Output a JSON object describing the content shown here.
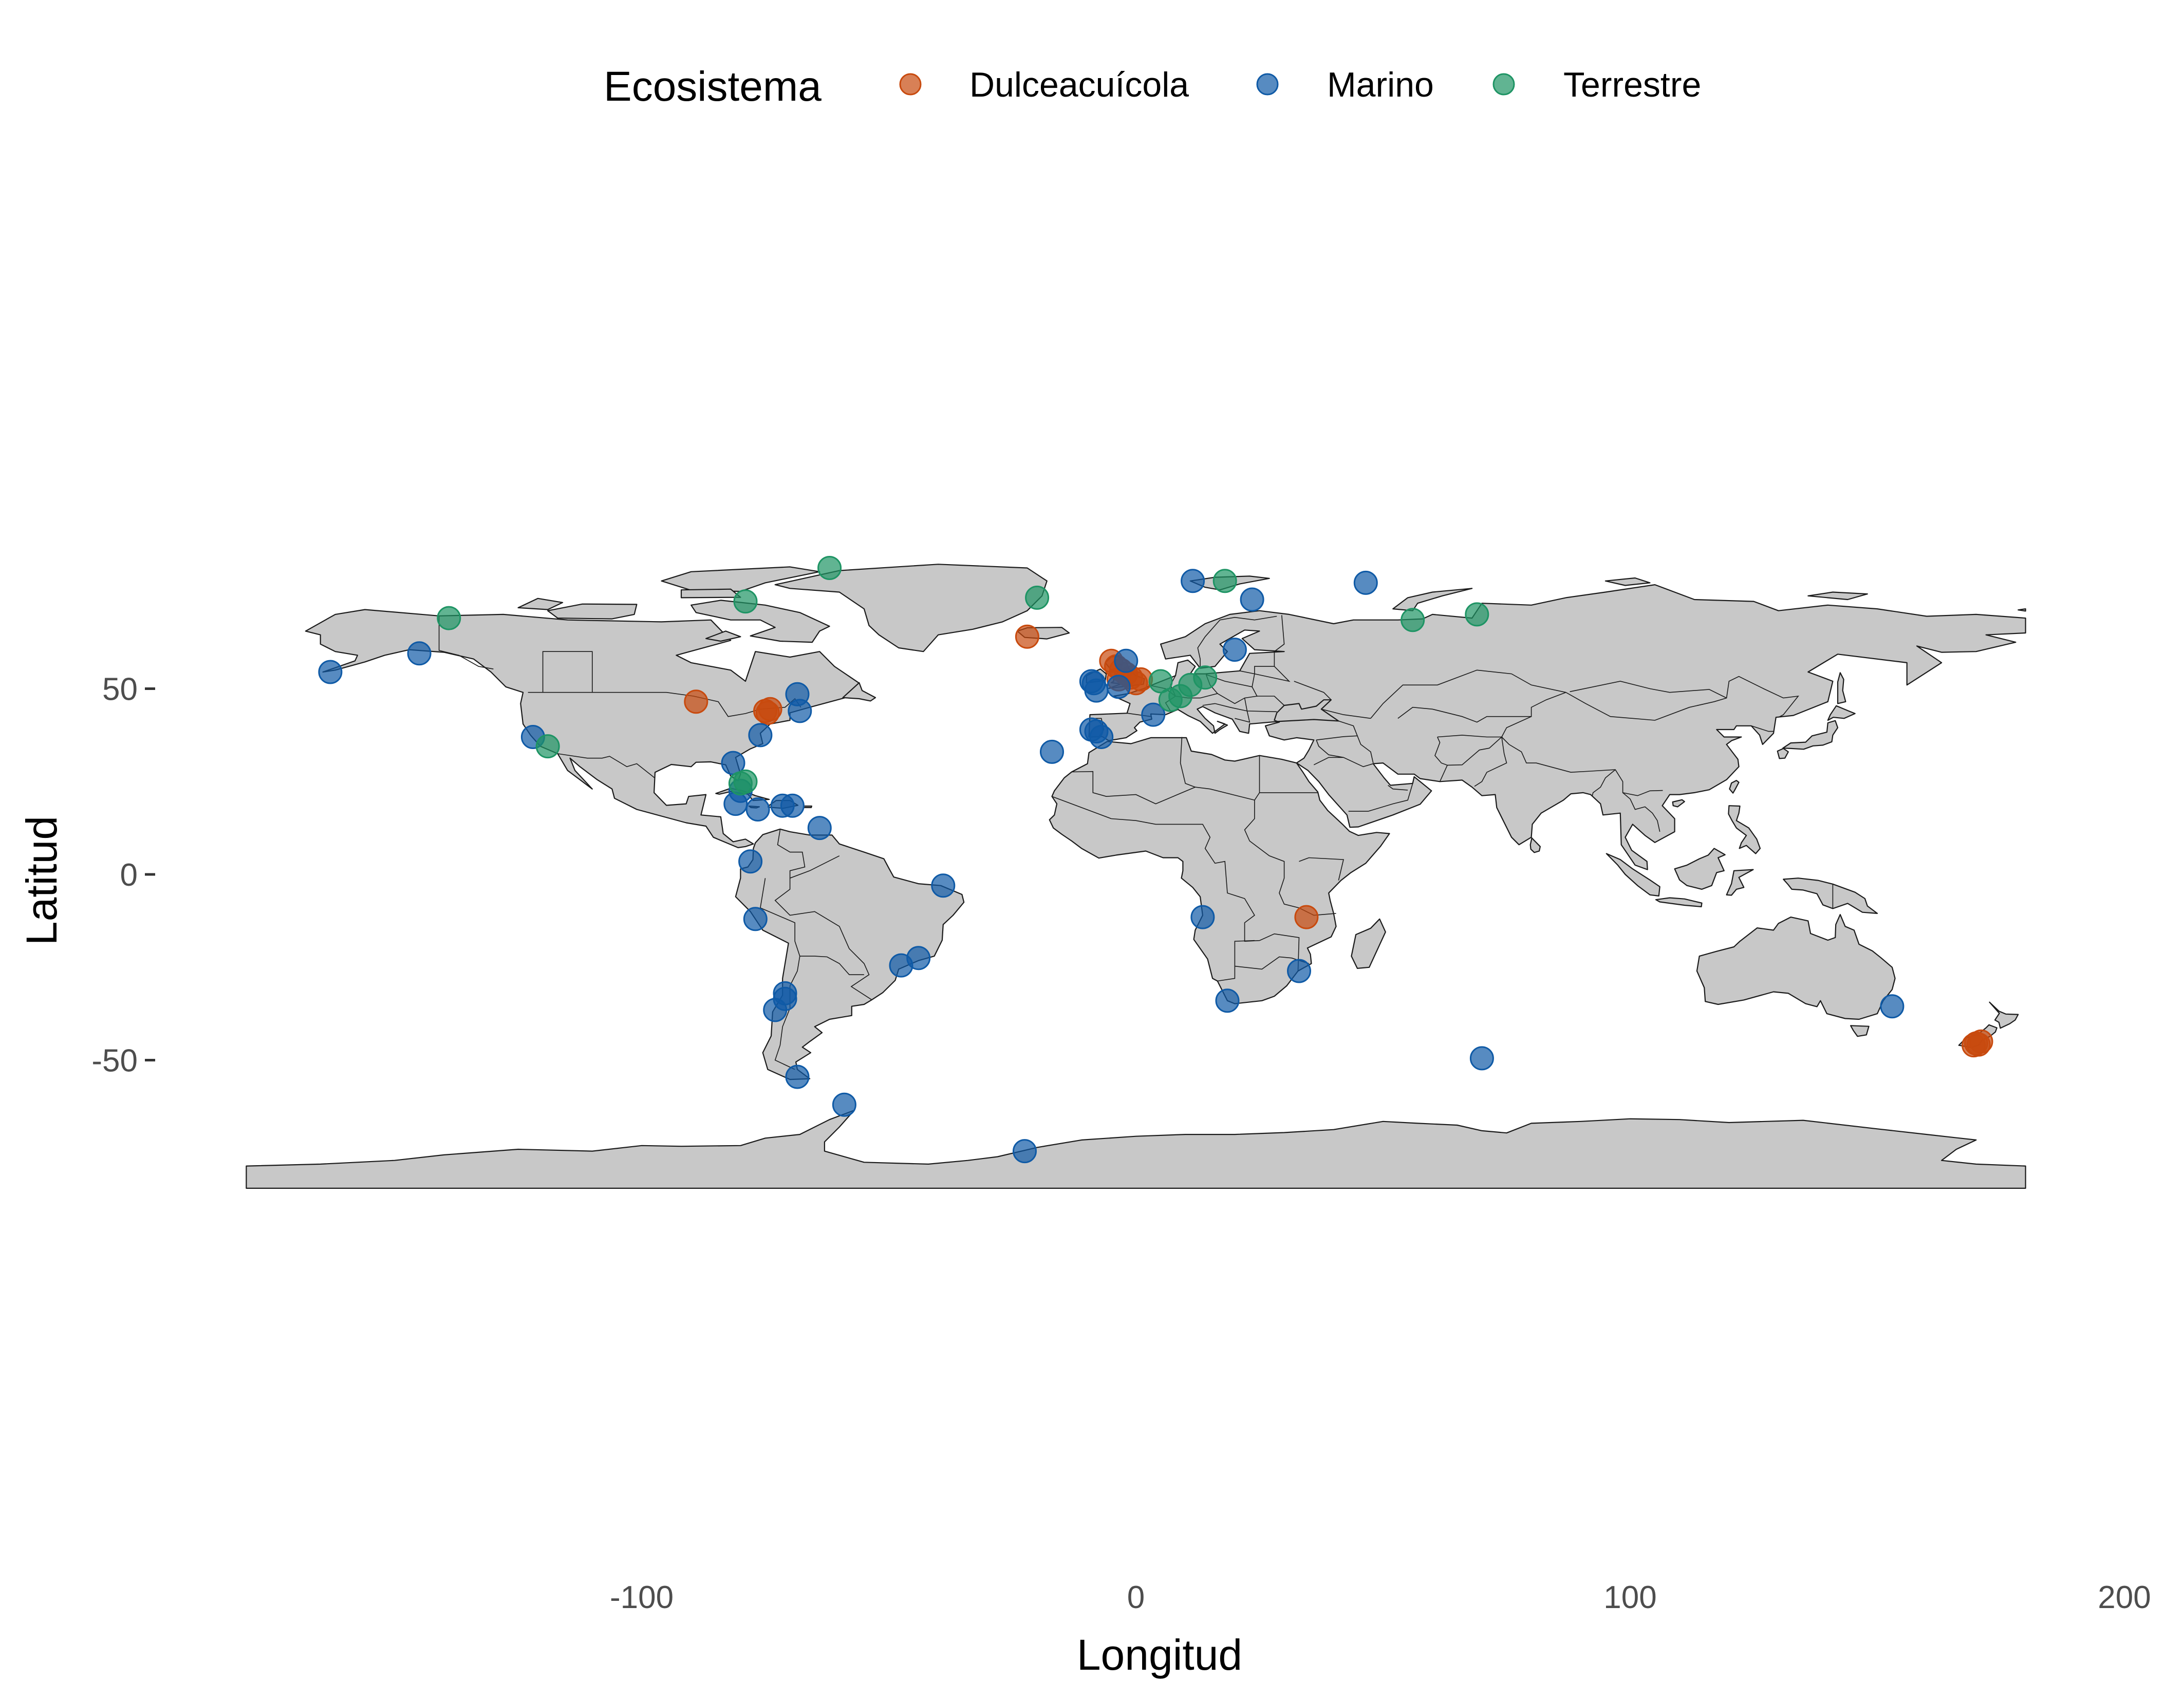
{
  "legend": {
    "title": "Ecosistema",
    "items": [
      {
        "label": "Dulceacuícola",
        "color": "#C84A0E"
      },
      {
        "label": "Marino",
        "color": "#0F5AA6"
      },
      {
        "label": "Terrestre",
        "color": "#1E9464"
      }
    ]
  },
  "axes": {
    "x_title": "Longitud",
    "y_title": "Latitud",
    "x_ticks": [
      {
        "value": -100,
        "label": "-100"
      },
      {
        "value": 0,
        "label": "0"
      },
      {
        "value": 100,
        "label": "100"
      },
      {
        "value": 200,
        "label": "200"
      }
    ],
    "y_ticks": [
      {
        "value": 50,
        "label": "50"
      },
      {
        "value": 0,
        "label": "0"
      },
      {
        "value": -50,
        "label": "-50"
      }
    ]
  },
  "chart_data": {
    "type": "scatter",
    "xlabel": "Longitud",
    "ylabel": "Latitud",
    "legend_title": "Ecosistema",
    "legend_position": "top",
    "grid": false,
    "xlim": [
      -180,
      200
    ],
    "ylim": [
      -85,
      84
    ],
    "series": [
      {
        "name": "Dulceacuícola",
        "points": [
          [
            -22,
            64
          ],
          [
            -89,
            46.5
          ],
          [
            -75,
            44
          ],
          [
            -74,
            44.5
          ],
          [
            -74.5,
            43.5
          ],
          [
            -5,
            57.5
          ],
          [
            -4,
            56
          ],
          [
            -3,
            55
          ],
          [
            -2,
            54
          ],
          [
            -3.5,
            52.5
          ],
          [
            -1,
            53
          ],
          [
            1,
            52.5
          ],
          [
            0,
            51.5
          ],
          [
            34.5,
            -11.5
          ],
          [
            170,
            -45.5
          ],
          [
            171,
            -45
          ],
          [
            169.5,
            -46
          ],
          [
            170.5,
            -45.8
          ]
        ]
      },
      {
        "name": "Marino",
        "points": [
          [
            -163,
            54.5
          ],
          [
            -145,
            59.5
          ],
          [
            -122,
            37
          ],
          [
            -81.5,
            30
          ],
          [
            -80,
            22.5
          ],
          [
            -81,
            19
          ],
          [
            -76.5,
            17.5
          ],
          [
            -71.5,
            18.5
          ],
          [
            -69.5,
            18.5
          ],
          [
            -64,
            12.5
          ],
          [
            -78,
            3.5
          ],
          [
            -77,
            -12
          ],
          [
            -76,
            37.5
          ],
          [
            -68.5,
            48.5
          ],
          [
            -68,
            44
          ],
          [
            -39,
            -3
          ],
          [
            -44,
            -22.5
          ],
          [
            -47.5,
            -24.5
          ],
          [
            -71,
            -32
          ],
          [
            -71,
            -33.5
          ],
          [
            -73,
            -36.5
          ],
          [
            -68.5,
            -54.5
          ],
          [
            -59,
            -62
          ],
          [
            -22.5,
            -74.5
          ],
          [
            -17,
            33
          ],
          [
            -9,
            39
          ],
          [
            -8,
            38.5
          ],
          [
            -7,
            37
          ],
          [
            -8,
            49.5
          ],
          [
            -9,
            52
          ],
          [
            -8.5,
            51.5
          ],
          [
            -3.5,
            50.5
          ],
          [
            -2,
            57.5
          ],
          [
            3.5,
            43
          ],
          [
            11.5,
            79
          ],
          [
            23.5,
            74
          ],
          [
            46.5,
            78.5
          ],
          [
            20,
            60.5
          ],
          [
            13.5,
            -11.5
          ],
          [
            18.5,
            -34
          ],
          [
            33,
            -26
          ],
          [
            70,
            -49.5
          ],
          [
            153,
            -35.5
          ]
        ]
      },
      {
        "name": "Terrestre",
        "points": [
          [
            -139,
            69
          ],
          [
            -79,
            73.5
          ],
          [
            -62,
            82.5
          ],
          [
            -20,
            74.5
          ],
          [
            -80,
            24.5
          ],
          [
            -79,
            25
          ],
          [
            -119,
            34.5
          ],
          [
            18,
            79
          ],
          [
            56,
            68.5
          ],
          [
            69,
            70
          ],
          [
            7,
            47
          ],
          [
            9,
            48
          ],
          [
            5,
            52
          ],
          [
            11,
            51
          ],
          [
            14,
            53
          ]
        ]
      }
    ]
  }
}
